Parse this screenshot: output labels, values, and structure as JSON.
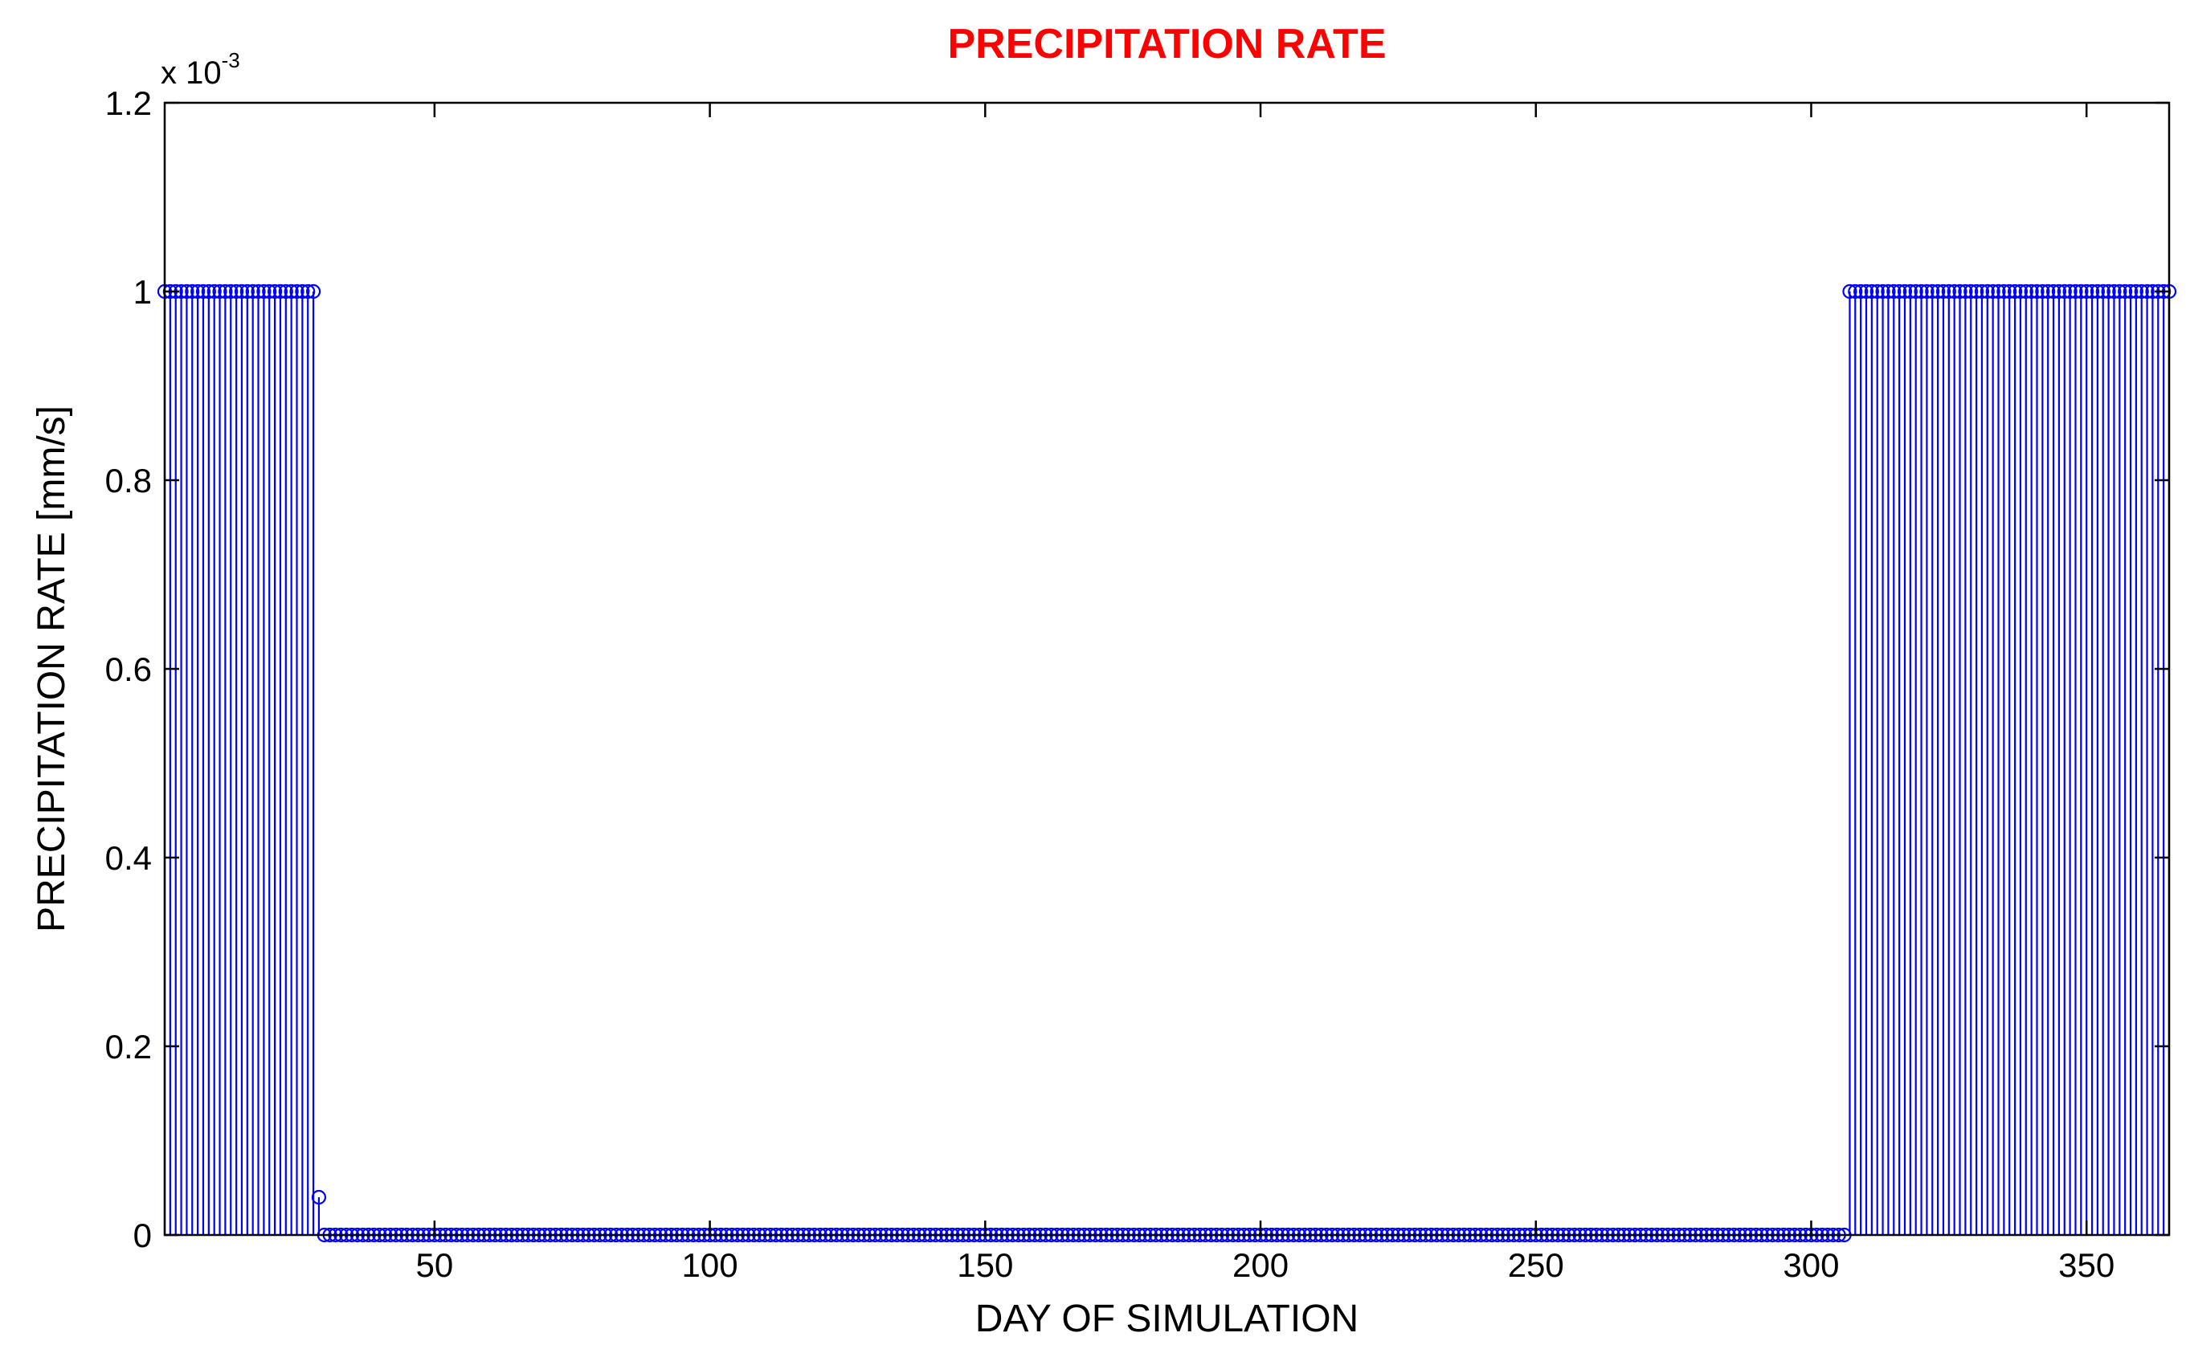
{
  "chart_data": {
    "type": "stem",
    "title": "PRECIPITATION RATE",
    "xlabel": "DAY OF SIMULATION",
    "ylabel": "PRECIPITATION RATE [mm/s]",
    "y_exponent_base": "x 10",
    "y_exponent_power": "-3",
    "xlim": [
      1,
      365
    ],
    "ylim": [
      0,
      0.0012
    ],
    "xticks": [
      50,
      100,
      150,
      200,
      250,
      300,
      350
    ],
    "xtick_labels": [
      "50",
      "100",
      "150",
      "200",
      "250",
      "300",
      "350"
    ],
    "yticks": [
      0,
      0.0002,
      0.0004,
      0.0006,
      0.0008,
      0.001,
      0.0012
    ],
    "ytick_labels": [
      "0",
      "0.2",
      "0.4",
      "0.6",
      "0.8",
      "1",
      "1.2"
    ],
    "segments": [
      {
        "x_start": 1,
        "x_end": 28,
        "value": 0.001
      },
      {
        "x_start": 29,
        "x_end": 29,
        "value": 4e-05
      },
      {
        "x_start": 30,
        "x_end": 306,
        "value": 0
      },
      {
        "x_start": 307,
        "x_end": 365,
        "value": 0.001
      }
    ],
    "grid": false,
    "legend": "none",
    "colors": {
      "title": "#ff0000",
      "stem": "#0000ff",
      "axis": "#000000"
    }
  }
}
